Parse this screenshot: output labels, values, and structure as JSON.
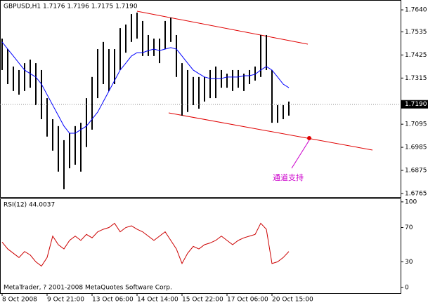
{
  "chart_data": [
    {
      "type": "hilo",
      "title": "GBPUSD,H1  1.7176 1.7196 1.7175 1.7190",
      "categories": [
        "8 Oct 2008",
        null,
        null,
        null,
        null,
        null,
        null,
        null,
        "9 Oct 21:00",
        null,
        null,
        null,
        null,
        null,
        null,
        null,
        "13 Oct 06:00",
        null,
        null,
        null,
        null,
        null,
        null,
        null,
        "14 Oct 14:00",
        null,
        null,
        null,
        null,
        null,
        null,
        null,
        "15 Oct 22:00",
        null,
        null,
        null,
        null,
        null,
        null,
        null,
        "17 Oct 06:00",
        null,
        null,
        null,
        null,
        null,
        null,
        null,
        "20 Oct 15:00",
        null,
        null,
        null
      ],
      "high": [
        1.7503,
        1.7453,
        1.737,
        1.7353,
        1.7386,
        1.7403,
        1.7386,
        1.7353,
        1.7219,
        1.7119,
        1.7086,
        1.7019,
        1.7052,
        1.7086,
        1.7102,
        1.7219,
        1.732,
        1.7453,
        1.7487,
        1.7453,
        1.7453,
        1.7553,
        1.757,
        1.762,
        1.7627,
        1.7587,
        1.752,
        1.7503,
        1.7503,
        1.7587,
        1.7603,
        1.752,
        1.7386,
        1.7353,
        1.732,
        1.732,
        1.732,
        1.7353,
        1.737,
        1.7353,
        1.7336,
        1.7353,
        1.7353,
        1.7336,
        1.7353,
        1.737,
        1.752,
        1.752,
        1.7353,
        1.7186,
        1.7186,
        1.7203
      ],
      "low": [
        1.7353,
        1.7286,
        1.7253,
        1.7236,
        1.7253,
        1.7269,
        1.7186,
        1.7119,
        1.7036,
        1.6969,
        1.6869,
        1.6785,
        1.6885,
        1.6902,
        1.6869,
        1.6986,
        1.7069,
        1.7219,
        1.7286,
        1.7253,
        1.7286,
        1.7353,
        1.7436,
        1.7487,
        1.7503,
        1.742,
        1.742,
        1.742,
        1.7386,
        1.7453,
        1.7487,
        1.732,
        1.7136,
        1.7153,
        1.7186,
        1.7169,
        1.7203,
        1.7219,
        1.7219,
        1.7269,
        1.7269,
        1.7253,
        1.7269,
        1.7253,
        1.7286,
        1.7303,
        1.732,
        1.7353,
        1.7102,
        1.7102,
        1.7119,
        1.7136
      ],
      "bar_color": "#000000",
      "series": [
        {
          "color": "#0000ff",
          "values": [
            1.7487,
            1.7453,
            1.742,
            1.7386,
            1.7353,
            1.7336,
            1.732,
            1.7286,
            1.7236,
            1.7186,
            1.7136,
            1.7086,
            1.7052,
            1.7052,
            1.7069,
            1.7086,
            1.7119,
            1.7153,
            1.7203,
            1.7253,
            1.7303,
            1.7353,
            1.7386,
            1.742,
            1.7436,
            1.7436,
            1.7446,
            1.7453,
            1.7446,
            1.7453,
            1.746,
            1.7453,
            1.742,
            1.7386,
            1.7353,
            1.7336,
            1.732,
            1.7313,
            1.7313,
            1.7313,
            1.732,
            1.732,
            1.732,
            1.7326,
            1.7326,
            1.7333,
            1.7353,
            1.737,
            1.7353,
            1.732,
            1.7286,
            1.7269
          ]
        }
      ],
      "ylim": [
        1.6748,
        1.7687
      ],
      "yticks": [
        {
          "value": 1.764,
          "label": "1.7640"
        },
        1.7535,
        1.7425,
        1.7315,
        1.7095,
        1.6985,
        1.6875,
        1.6765
      ],
      "last_price": {
        "value": 1.719,
        "label": "1.7190"
      },
      "annotation": "通道支持"
    },
    {
      "type": "line",
      "title": "RSI(12) 44.0037",
      "series": [
        {
          "color": "#cc0000",
          "values": [
            53,
            45,
            40,
            35,
            42,
            38,
            30,
            25,
            35,
            60,
            50,
            45,
            55,
            60,
            55,
            62,
            58,
            65,
            68,
            70,
            75,
            65,
            70,
            72,
            68,
            65,
            60,
            55,
            60,
            65,
            55,
            45,
            28,
            40,
            48,
            45,
            50,
            52,
            55,
            60,
            55,
            50,
            55,
            58,
            60,
            62,
            75,
            68,
            28,
            30,
            35,
            42
          ]
        }
      ],
      "ylim": [
        -6.5,
        104
      ],
      "yticks": [
        100,
        70,
        30,
        0
      ],
      "source": "MetaTrader, ? 2001-2008 MetaQuotes Software Corp."
    }
  ]
}
